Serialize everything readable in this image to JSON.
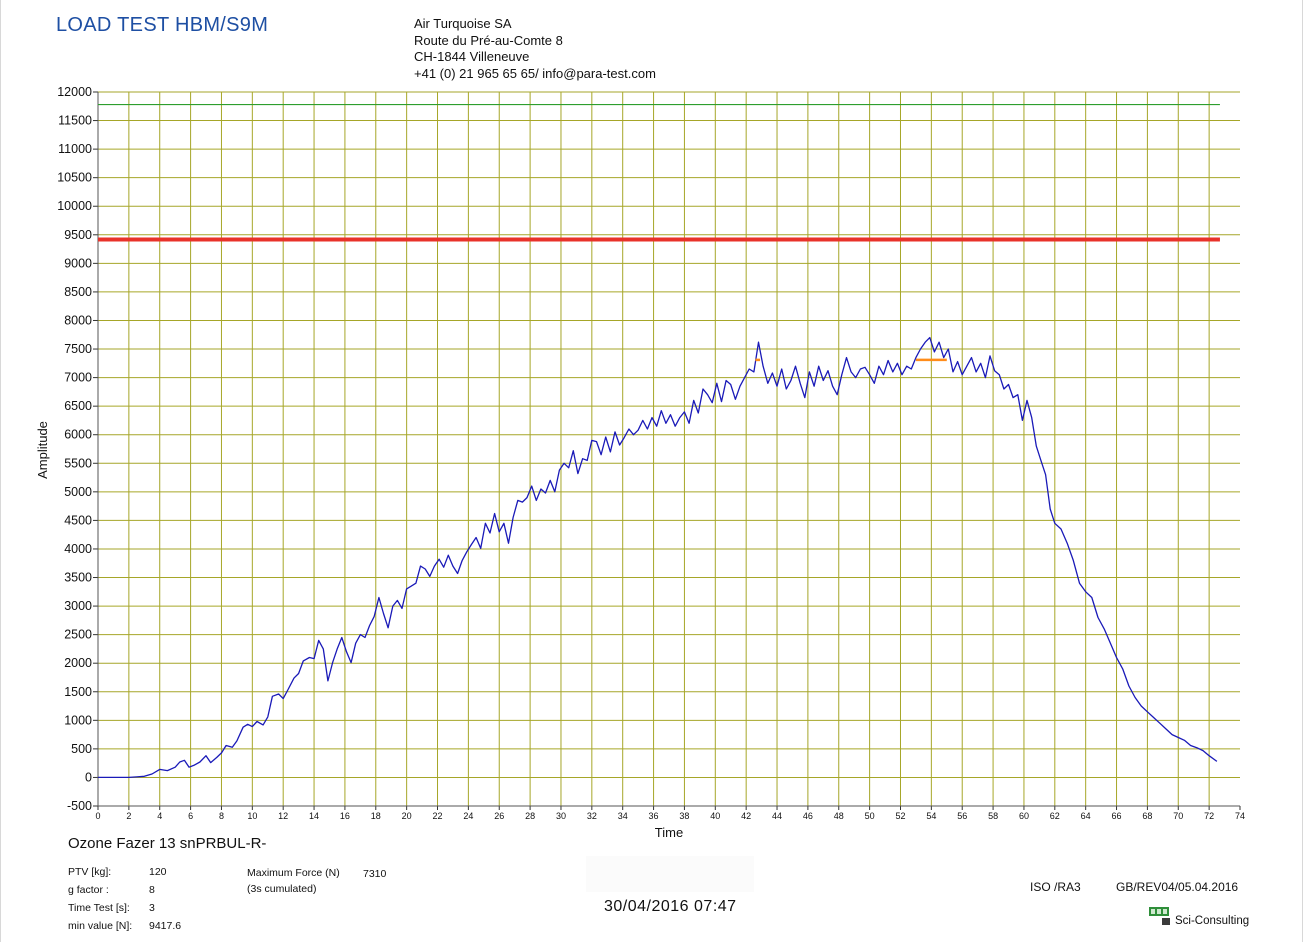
{
  "header": {
    "title": "LOAD TEST HBM/S9M",
    "company_lines": [
      "Air Turquoise SA",
      "Route du Pré-au-Comte 8",
      "CH-1844 Villeneuve",
      "+41 (0) 21 965 65 65/ info@para-test.com"
    ]
  },
  "chart_data": {
    "type": "line",
    "title": "",
    "xlabel": "Time",
    "ylabel": "Amplitude",
    "xlim": [
      0,
      74
    ],
    "ylim": [
      -500,
      12000
    ],
    "x_ticks": [
      0,
      2,
      4,
      6,
      8,
      10,
      12,
      14,
      16,
      18,
      20,
      22,
      24,
      26,
      28,
      30,
      32,
      34,
      36,
      38,
      40,
      42,
      44,
      46,
      48,
      50,
      52,
      54,
      56,
      58,
      60,
      62,
      64,
      66,
      68,
      70,
      72,
      74
    ],
    "y_ticks": [
      -500,
      0,
      500,
      1000,
      1500,
      2000,
      2500,
      3000,
      3500,
      4000,
      4500,
      5000,
      5500,
      6000,
      6500,
      7000,
      7500,
      8000,
      8500,
      9000,
      9500,
      10000,
      10500,
      11000,
      11500,
      12000
    ],
    "grid": true,
    "reference_lines": [
      {
        "value": 11780,
        "color": "#2e9e2e"
      },
      {
        "value": 9417.6,
        "color": "#e8322a"
      }
    ],
    "max_markers": [
      {
        "x_start": 42.6,
        "x_end": 42.9,
        "y": 7310,
        "color": "#ff8c1a"
      },
      {
        "x_start": 53.0,
        "x_end": 55.0,
        "y": 7310,
        "color": "#ff8c1a"
      }
    ],
    "series": [
      {
        "color": "#1a1ab8",
        "points": [
          [
            0,
            0
          ],
          [
            1,
            0
          ],
          [
            2,
            0
          ],
          [
            2.5,
            10
          ],
          [
            3,
            20
          ],
          [
            3.5,
            60
          ],
          [
            4,
            140
          ],
          [
            4.5,
            120
          ],
          [
            5,
            180
          ],
          [
            5.3,
            270
          ],
          [
            5.6,
            300
          ],
          [
            5.9,
            180
          ],
          [
            6.2,
            210
          ],
          [
            6.6,
            270
          ],
          [
            7,
            380
          ],
          [
            7.3,
            260
          ],
          [
            7.7,
            350
          ],
          [
            8,
            430
          ],
          [
            8.3,
            560
          ],
          [
            8.7,
            530
          ],
          [
            9,
            640
          ],
          [
            9.4,
            880
          ],
          [
            9.7,
            930
          ],
          [
            10,
            890
          ],
          [
            10.3,
            980
          ],
          [
            10.7,
            920
          ],
          [
            11,
            1060
          ],
          [
            11.3,
            1420
          ],
          [
            11.7,
            1460
          ],
          [
            12,
            1380
          ],
          [
            12.3,
            1530
          ],
          [
            12.7,
            1740
          ],
          [
            13,
            1820
          ],
          [
            13.3,
            2040
          ],
          [
            13.7,
            2100
          ],
          [
            14,
            2080
          ],
          [
            14.3,
            2400
          ],
          [
            14.6,
            2250
          ],
          [
            14.9,
            1690
          ],
          [
            15.2,
            2010
          ],
          [
            15.5,
            2250
          ],
          [
            15.8,
            2450
          ],
          [
            16.1,
            2200
          ],
          [
            16.4,
            2010
          ],
          [
            16.7,
            2350
          ],
          [
            17,
            2500
          ],
          [
            17.3,
            2450
          ],
          [
            17.6,
            2660
          ],
          [
            17.9,
            2820
          ],
          [
            18.2,
            3150
          ],
          [
            18.5,
            2870
          ],
          [
            18.8,
            2620
          ],
          [
            19.1,
            3000
          ],
          [
            19.4,
            3100
          ],
          [
            19.7,
            2960
          ],
          [
            20,
            3300
          ],
          [
            20.3,
            3350
          ],
          [
            20.6,
            3400
          ],
          [
            20.9,
            3700
          ],
          [
            21.2,
            3650
          ],
          [
            21.5,
            3520
          ],
          [
            21.8,
            3700
          ],
          [
            22.1,
            3820
          ],
          [
            22.4,
            3680
          ],
          [
            22.7,
            3890
          ],
          [
            23,
            3700
          ],
          [
            23.3,
            3570
          ],
          [
            23.6,
            3800
          ],
          [
            23.9,
            3950
          ],
          [
            24.2,
            4080
          ],
          [
            24.5,
            4200
          ],
          [
            24.8,
            4010
          ],
          [
            25.1,
            4450
          ],
          [
            25.4,
            4280
          ],
          [
            25.7,
            4620
          ],
          [
            26,
            4300
          ],
          [
            26.3,
            4450
          ],
          [
            26.6,
            4100
          ],
          [
            26.9,
            4550
          ],
          [
            27.2,
            4850
          ],
          [
            27.5,
            4820
          ],
          [
            27.8,
            4900
          ],
          [
            28.1,
            5100
          ],
          [
            28.4,
            4850
          ],
          [
            28.7,
            5050
          ],
          [
            29,
            4980
          ],
          [
            29.3,
            5200
          ],
          [
            29.6,
            5000
          ],
          [
            29.9,
            5380
          ],
          [
            30.2,
            5500
          ],
          [
            30.5,
            5420
          ],
          [
            30.8,
            5720
          ],
          [
            31.1,
            5320
          ],
          [
            31.4,
            5580
          ],
          [
            31.7,
            5550
          ],
          [
            32,
            5900
          ],
          [
            32.3,
            5880
          ],
          [
            32.6,
            5650
          ],
          [
            32.9,
            5960
          ],
          [
            33.2,
            5700
          ],
          [
            33.5,
            6050
          ],
          [
            33.8,
            5820
          ],
          [
            34.1,
            5950
          ],
          [
            34.4,
            6100
          ],
          [
            34.7,
            6000
          ],
          [
            35,
            6080
          ],
          [
            35.3,
            6250
          ],
          [
            35.6,
            6100
          ],
          [
            35.9,
            6300
          ],
          [
            36.2,
            6150
          ],
          [
            36.5,
            6420
          ],
          [
            36.8,
            6200
          ],
          [
            37.1,
            6350
          ],
          [
            37.4,
            6150
          ],
          [
            37.7,
            6300
          ],
          [
            38,
            6400
          ],
          [
            38.3,
            6200
          ],
          [
            38.6,
            6600
          ],
          [
            38.9,
            6380
          ],
          [
            39.2,
            6800
          ],
          [
            39.5,
            6700
          ],
          [
            39.8,
            6560
          ],
          [
            40.1,
            6900
          ],
          [
            40.4,
            6580
          ],
          [
            40.7,
            6950
          ],
          [
            41,
            6880
          ],
          [
            41.3,
            6620
          ],
          [
            41.6,
            6850
          ],
          [
            41.9,
            7000
          ],
          [
            42.2,
            7150
          ],
          [
            42.5,
            7100
          ],
          [
            42.8,
            7620
          ],
          [
            43.1,
            7200
          ],
          [
            43.4,
            6900
          ],
          [
            43.7,
            7080
          ],
          [
            44,
            6850
          ],
          [
            44.3,
            7150
          ],
          [
            44.6,
            6800
          ],
          [
            44.9,
            6950
          ],
          [
            45.2,
            7200
          ],
          [
            45.5,
            6900
          ],
          [
            45.8,
            6650
          ],
          [
            46.1,
            7100
          ],
          [
            46.4,
            6850
          ],
          [
            46.7,
            7200
          ],
          [
            47,
            6950
          ],
          [
            47.3,
            7120
          ],
          [
            47.6,
            6850
          ],
          [
            47.9,
            6700
          ],
          [
            48.2,
            7050
          ],
          [
            48.5,
            7350
          ],
          [
            48.8,
            7100
          ],
          [
            49.1,
            7000
          ],
          [
            49.4,
            7150
          ],
          [
            49.7,
            7180
          ],
          [
            50,
            7050
          ],
          [
            50.3,
            6900
          ],
          [
            50.6,
            7200
          ],
          [
            50.9,
            7050
          ],
          [
            51.2,
            7300
          ],
          [
            51.5,
            7100
          ],
          [
            51.8,
            7250
          ],
          [
            52.1,
            7050
          ],
          [
            52.4,
            7200
          ],
          [
            52.7,
            7150
          ],
          [
            53,
            7350
          ],
          [
            53.3,
            7500
          ],
          [
            53.6,
            7620
          ],
          [
            53.9,
            7700
          ],
          [
            54.2,
            7450
          ],
          [
            54.5,
            7620
          ],
          [
            54.8,
            7350
          ],
          [
            55.1,
            7500
          ],
          [
            55.4,
            7100
          ],
          [
            55.7,
            7280
          ],
          [
            56,
            7050
          ],
          [
            56.3,
            7200
          ],
          [
            56.6,
            7350
          ],
          [
            56.9,
            7100
          ],
          [
            57.2,
            7250
          ],
          [
            57.5,
            7000
          ],
          [
            57.8,
            7380
          ],
          [
            58.1,
            7120
          ],
          [
            58.4,
            7050
          ],
          [
            58.7,
            6800
          ],
          [
            59,
            6880
          ],
          [
            59.3,
            6650
          ],
          [
            59.6,
            6700
          ],
          [
            59.9,
            6250
          ],
          [
            60.2,
            6600
          ],
          [
            60.5,
            6300
          ],
          [
            60.8,
            5800
          ],
          [
            61.1,
            5550
          ],
          [
            61.4,
            5300
          ],
          [
            61.7,
            4700
          ],
          [
            62,
            4450
          ],
          [
            62.4,
            4350
          ],
          [
            62.8,
            4100
          ],
          [
            63.2,
            3800
          ],
          [
            63.6,
            3400
          ],
          [
            64,
            3250
          ],
          [
            64.4,
            3150
          ],
          [
            64.8,
            2800
          ],
          [
            65.2,
            2600
          ],
          [
            65.6,
            2350
          ],
          [
            66,
            2100
          ],
          [
            66.4,
            1900
          ],
          [
            66.8,
            1600
          ],
          [
            67.2,
            1400
          ],
          [
            67.6,
            1250
          ],
          [
            68,
            1150
          ],
          [
            68.4,
            1050
          ],
          [
            68.8,
            950
          ],
          [
            69.2,
            850
          ],
          [
            69.6,
            750
          ],
          [
            70,
            700
          ],
          [
            70.4,
            650
          ],
          [
            70.8,
            560
          ],
          [
            71.2,
            520
          ],
          [
            71.6,
            470
          ],
          [
            72,
            380
          ],
          [
            72.5,
            280
          ]
        ]
      }
    ]
  },
  "test_info": {
    "model": "Ozone Fazer 13 snPRBUL-R-",
    "ptv_label": "PTV [kg]:",
    "ptv_value": "120",
    "g_label": "g factor :",
    "g_value": "8",
    "time_label": "Time Test [s]:",
    "time_value": "3",
    "min_label": "min value [N]:",
    "min_value": "9417.6",
    "max_force_label": "Maximum Force (N)",
    "max_force_value": "7310",
    "max_force_note": "(3s cumulated)"
  },
  "footer": {
    "datetime": "30/04/2016 07:47",
    "iso": "ISO /RA3",
    "revision": "GB/REV04/05.04.2016",
    "brand": "Sci-Consulting"
  }
}
